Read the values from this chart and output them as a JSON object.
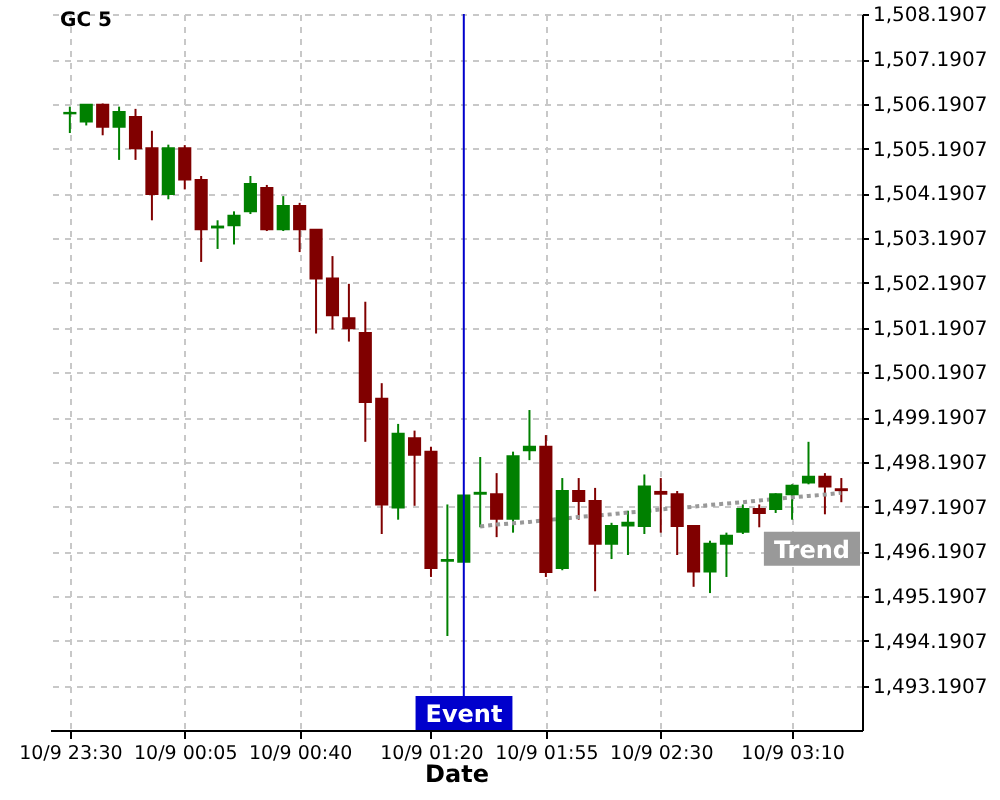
{
  "chart_data": {
    "type": "candlestick",
    "title": "GC 5",
    "xlabel": "Date",
    "annotations": [
      "Event"
    ],
    "categories": [
      "10/9 23:30",
      null,
      null,
      null,
      null,
      null,
      null,
      "10/9 00:05",
      null,
      null,
      null,
      null,
      null,
      null,
      "10/9 00:40",
      null,
      null,
      null,
      null,
      null,
      null,
      null,
      "10/9 01:20",
      null,
      null,
      null,
      null,
      null,
      null,
      "10/9 01:55",
      null,
      null,
      null,
      null,
      null,
      null,
      "10/9 02:30",
      null,
      null,
      null,
      null,
      null,
      null,
      null,
      "10/9 03:10",
      null,
      null,
      null
    ],
    "ohlc": [
      [
        1505.98,
        1506.13,
        1505.54,
        1505.99
      ],
      [
        1505.8,
        1506.17,
        1505.71,
        1506.17
      ],
      [
        1506.17,
        1506.2,
        1505.49,
        1505.68
      ],
      [
        1505.68,
        1506.13,
        1504.94,
        1506.01
      ],
      [
        1505.9,
        1506.08,
        1504.94,
        1505.2
      ],
      [
        1505.2,
        1505.59,
        1503.59,
        1504.18
      ],
      [
        1504.18,
        1505.28,
        1504.06,
        1505.2
      ],
      [
        1505.2,
        1505.27,
        1504.28,
        1504.5
      ],
      [
        1504.49,
        1504.58,
        1502.66,
        1503.39
      ],
      [
        1503.43,
        1503.59,
        1502.95,
        1503.45
      ],
      [
        1503.48,
        1503.79,
        1503.05,
        1503.69
      ],
      [
        1503.79,
        1504.58,
        1503.73,
        1504.4
      ],
      [
        1504.31,
        1504.38,
        1503.35,
        1503.39
      ],
      [
        1503.39,
        1504.13,
        1503.35,
        1503.91
      ],
      [
        1503.91,
        1503.98,
        1502.88,
        1503.39
      ],
      [
        1503.38,
        1503.38,
        1501.06,
        1502.29
      ],
      [
        1502.29,
        1502.79,
        1501.15,
        1501.47
      ],
      [
        1501.4,
        1502.17,
        1500.88,
        1501.18
      ],
      [
        1501.07,
        1501.77,
        1498.64,
        1499.53
      ],
      [
        1499.6,
        1499.95,
        1496.58,
        1497.24
      ],
      [
        1497.17,
        1499.04,
        1496.9,
        1498.82
      ],
      [
        1498.72,
        1498.89,
        1497.21,
        1498.35
      ],
      [
        1498.42,
        1498.53,
        1495.62,
        1495.82
      ],
      [
        1495.98,
        1497.24,
        1494.3,
        1496.0
      ],
      [
        1495.96,
        1497.44,
        1495.96,
        1497.44
      ],
      [
        1497.48,
        1498.3,
        1496.73,
        1497.5
      ],
      [
        1497.47,
        1497.94,
        1496.51,
        1496.92
      ],
      [
        1496.92,
        1498.42,
        1496.61,
        1498.32
      ],
      [
        1498.45,
        1499.35,
        1498.23,
        1498.53
      ],
      [
        1498.53,
        1498.79,
        1495.62,
        1495.73
      ],
      [
        1495.82,
        1497.83,
        1495.77,
        1497.54
      ],
      [
        1497.54,
        1497.83,
        1496.9,
        1497.32
      ],
      [
        1497.32,
        1497.61,
        1495.3,
        1496.36
      ],
      [
        1496.36,
        1496.83,
        1496.02,
        1496.76
      ],
      [
        1496.77,
        1497.1,
        1496.11,
        1496.83
      ],
      [
        1496.76,
        1497.91,
        1496.58,
        1497.64
      ],
      [
        1497.52,
        1497.83,
        1496.61,
        1497.48
      ],
      [
        1497.47,
        1497.54,
        1496.11,
        1496.76
      ],
      [
        1496.76,
        1496.76,
        1495.4,
        1495.74
      ],
      [
        1495.74,
        1496.43,
        1495.26,
        1496.36
      ],
      [
        1496.36,
        1496.61,
        1495.62,
        1496.54
      ],
      [
        1496.63,
        1497.24,
        1496.58,
        1497.14
      ],
      [
        1497.14,
        1497.24,
        1496.73,
        1497.05
      ],
      [
        1497.14,
        1497.49,
        1497.05,
        1497.47
      ],
      [
        1497.47,
        1497.69,
        1496.9,
        1497.66
      ],
      [
        1497.73,
        1498.64,
        1497.69,
        1497.86
      ],
      [
        1497.86,
        1497.94,
        1497.02,
        1497.64
      ],
      [
        1497.58,
        1497.83,
        1497.29,
        1497.56
      ]
    ],
    "colors": [
      "#008000",
      "#008000",
      "#800000",
      "#008000",
      "#800000",
      "#800000",
      "#008000",
      "#800000",
      "#800000",
      "#008000",
      "#008000",
      "#008000",
      "#800000",
      "#008000",
      "#800000",
      "#800000",
      "#800000",
      "#800000",
      "#800000",
      "#800000",
      "#008000",
      "#800000",
      "#800000",
      "#008000",
      "#008000",
      "#008000",
      "#800000",
      "#008000",
      "#008000",
      "#800000",
      "#008000",
      "#800000",
      "#800000",
      "#008000",
      "#008000",
      "#008000",
      "#800000",
      "#800000",
      "#800000",
      "#008000",
      "#008000",
      "#008000",
      "#800000",
      "#008000",
      "#008000",
      "#008000",
      "#800000",
      "#800000"
    ],
    "series": [
      {
        "name": "Trend",
        "type": "line",
        "values": [
          null,
          null,
          null,
          null,
          null,
          null,
          null,
          null,
          null,
          null,
          null,
          null,
          null,
          null,
          null,
          null,
          null,
          null,
          null,
          null,
          null,
          null,
          null,
          null,
          null,
          1496.75,
          1496.79,
          1496.82,
          1496.85,
          1496.89,
          1496.92,
          1496.96,
          1496.99,
          1497.02,
          1497.06,
          1497.09,
          1497.13,
          1497.16,
          1497.19,
          1497.23,
          1497.26,
          1497.29,
          1497.33,
          1497.36,
          1497.4,
          1497.43,
          1497.46,
          1497.5
        ],
        "color": "#999999",
        "line_style": "dotted"
      }
    ],
    "ylim": [
      1492.2,
      1508.2
    ],
    "yticks": [
      {
        "value": 1493.1907,
        "label": "1,493.1907"
      },
      {
        "value": 1494.1907,
        "label": "1,494.1907"
      },
      {
        "value": 1495.1907,
        "label": "1,495.1907"
      },
      {
        "value": 1496.1907,
        "label": "1,496.1907"
      },
      {
        "value": 1497.1907,
        "label": "1,497.1907"
      },
      {
        "value": 1498.1907,
        "label": "1,498.1907"
      },
      {
        "value": 1499.1907,
        "label": "1,499.1907"
      },
      {
        "value": 1500.1907,
        "label": "1,500.1907"
      },
      {
        "value": 1501.1907,
        "label": "1,501.1907"
      },
      {
        "value": 1502.1907,
        "label": "1,502.1907"
      },
      {
        "value": 1503.1907,
        "label": "1,503.1907"
      },
      {
        "value": 1504.1907,
        "label": "1,504.1907"
      },
      {
        "value": 1505.1907,
        "label": "1,505.1907"
      },
      {
        "value": 1506.1907,
        "label": "1,506.1907"
      },
      {
        "value": 1507.1907,
        "label": "1,507.1907"
      },
      {
        "value": 1508.1907,
        "label": "1,508.1907"
      }
    ],
    "grid": true
  }
}
